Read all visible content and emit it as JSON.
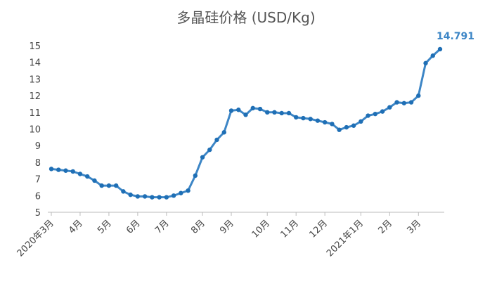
{
  "chart_data": {
    "type": "line",
    "title": "多晶硅价格 (USD/Kg)",
    "categories": [
      "2020年3月",
      null,
      null,
      null,
      "4月",
      null,
      null,
      null,
      "5月",
      null,
      null,
      null,
      "6月",
      null,
      null,
      null,
      "7月",
      null,
      null,
      null,
      null,
      "8月",
      null,
      null,
      null,
      "9月",
      null,
      null,
      null,
      null,
      "10月",
      null,
      null,
      null,
      "11月",
      null,
      null,
      null,
      "12月",
      null,
      null,
      null,
      null,
      "2021年1月",
      null,
      null,
      null,
      "2月",
      null,
      null,
      null,
      "3月",
      null,
      null,
      null
    ],
    "series": [
      {
        "name": "多晶硅价格",
        "color": "#3d86c6",
        "values": [
          7.6,
          7.55,
          7.5,
          7.45,
          7.3,
          7.15,
          6.9,
          6.6,
          6.6,
          6.6,
          6.25,
          6.05,
          5.95,
          5.95,
          5.9,
          5.9,
          5.9,
          6.0,
          6.15,
          6.3,
          7.2,
          8.3,
          8.75,
          9.35,
          9.8,
          11.1,
          11.15,
          10.85,
          11.25,
          11.2,
          11.0,
          11.0,
          10.95,
          10.95,
          10.7,
          10.65,
          10.6,
          10.5,
          10.4,
          10.3,
          9.95,
          10.1,
          10.2,
          10.45,
          10.8,
          10.9,
          11.05,
          11.3,
          11.6,
          11.55,
          11.6,
          12.0,
          13.95,
          14.4,
          14.791
        ]
      }
    ],
    "ylim": [
      5,
      15
    ],
    "yticks": [
      5,
      6,
      7,
      8,
      9,
      10,
      11,
      12,
      13,
      14,
      15
    ],
    "grid": false
  }
}
